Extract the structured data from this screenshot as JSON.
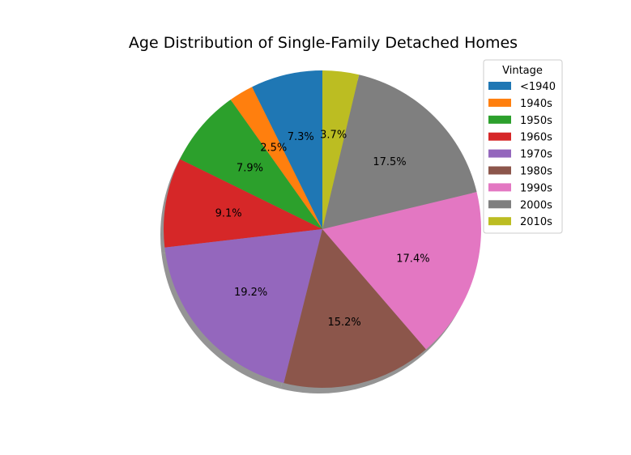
{
  "chart_data": {
    "type": "pie",
    "title": "Age Distribution of Single-Family Detached Homes",
    "legend_title": "Vintage",
    "legend_position": "top-right",
    "shadow": true,
    "start_angle_deg": 90,
    "direction": "counterclockwise",
    "slices": [
      {
        "label": "<1940",
        "value": 7.3,
        "pct_label": "7.3%",
        "color": "#1f77b4"
      },
      {
        "label": "1940s",
        "value": 2.5,
        "pct_label": "2.5%",
        "color": "#ff7f0e"
      },
      {
        "label": "1950s",
        "value": 7.9,
        "pct_label": "7.9%",
        "color": "#2ca02c"
      },
      {
        "label": "1960s",
        "value": 9.1,
        "pct_label": "9.1%",
        "color": "#d62728"
      },
      {
        "label": "1970s",
        "value": 19.2,
        "pct_label": "19.2%",
        "color": "#9467bd"
      },
      {
        "label": "1980s",
        "value": 15.2,
        "pct_label": "15.2%",
        "color": "#8c564b"
      },
      {
        "label": "1990s",
        "value": 17.4,
        "pct_label": "17.4%",
        "color": "#e377c2"
      },
      {
        "label": "2000s",
        "value": 17.5,
        "pct_label": "17.5%",
        "color": "#7f7f7f"
      },
      {
        "label": "2010s",
        "value": 3.7,
        "pct_label": "3.7%",
        "color": "#bcbd22"
      }
    ]
  }
}
